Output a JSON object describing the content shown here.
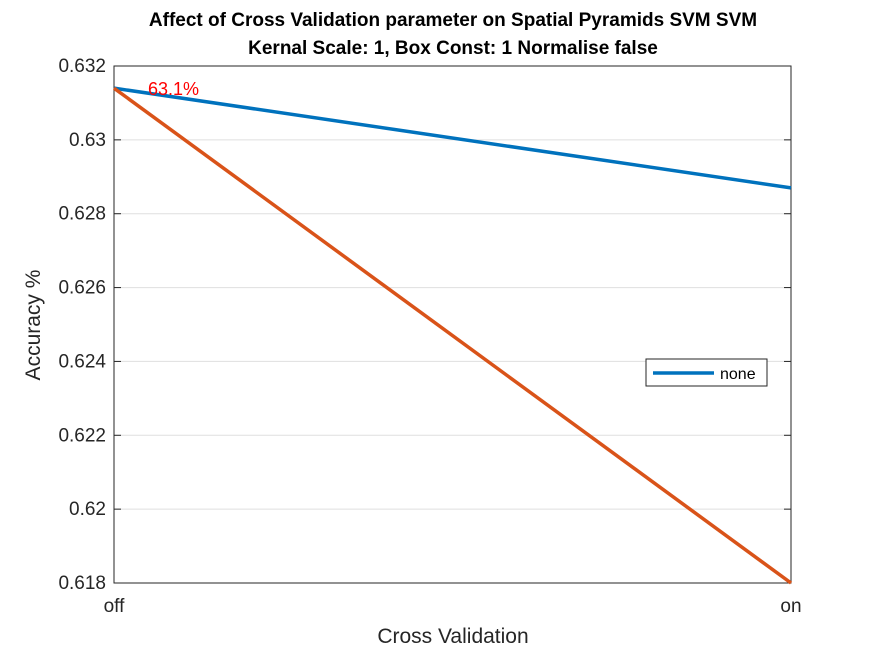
{
  "chart_data": {
    "type": "line",
    "title": "Affect of Cross Validation parameter on Spatial Pyramids SVM SVM",
    "subtitle": "Kernal Scale: 1, Box Const: 1 Normalise false",
    "xlabel": "Cross Validation",
    "ylabel": "Accuracy %",
    "categories": [
      "off",
      "on"
    ],
    "ylim": [
      0.618,
      0.632
    ],
    "yticks": [
      "0.618",
      "0.62",
      "0.622",
      "0.624",
      "0.626",
      "0.628",
      "0.63",
      "0.632"
    ],
    "grid": "horizontal",
    "legend_position": "right",
    "series": [
      {
        "name": "none",
        "values": [
          0.6314,
          0.6287
        ],
        "color": "#0072BD"
      },
      {
        "name": "",
        "values": [
          0.6314,
          0.618
        ],
        "color": "#D95319"
      }
    ],
    "annotations": [
      {
        "text": "63.1%",
        "x": "off",
        "y": 0.6314,
        "color": "#ff0000"
      }
    ]
  }
}
